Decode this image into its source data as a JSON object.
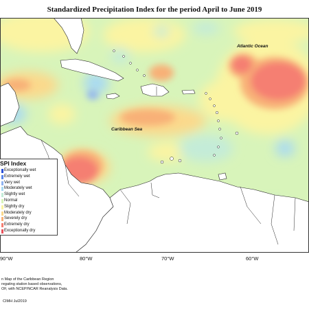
{
  "title": "Standardized Precipitation Index for the period April to June 2019",
  "map_labels": {
    "atlantic": "Atlantic Ocean",
    "caribbean": "Caribbean Sea"
  },
  "legend": {
    "title": "SPI Index",
    "items": [
      {
        "label": "Exceptionally wet",
        "color": "#2a4fd6"
      },
      {
        "label": "Extremely wet",
        "color": "#5a86ea"
      },
      {
        "label": "Very wet",
        "color": "#8fb3f0"
      },
      {
        "label": "Moderately wet",
        "color": "#a9daf2"
      },
      {
        "label": "Slightly wet",
        "color": "#c4ecd8"
      },
      {
        "label": "Normal",
        "color": "#d8f4ba"
      },
      {
        "label": "Slightly dry",
        "color": "#fbf4a2"
      },
      {
        "label": "Moderately dry",
        "color": "#fbd98c"
      },
      {
        "label": "Severely dry",
        "color": "#f8b077"
      },
      {
        "label": "Extremely dry",
        "color": "#f57f72"
      },
      {
        "label": "Exceptionally dry",
        "color": "#e8515b"
      }
    ]
  },
  "longitudes": [
    "90°W",
    "80°W",
    "70°W",
    "60°W"
  ],
  "footer": [
    "n Map of the Caribbean Region",
    "regating station based observations,",
    "OF, with NCEP/NCAR Reanalysis Data."
  ],
  "credit": "CIMH Jul2019"
}
